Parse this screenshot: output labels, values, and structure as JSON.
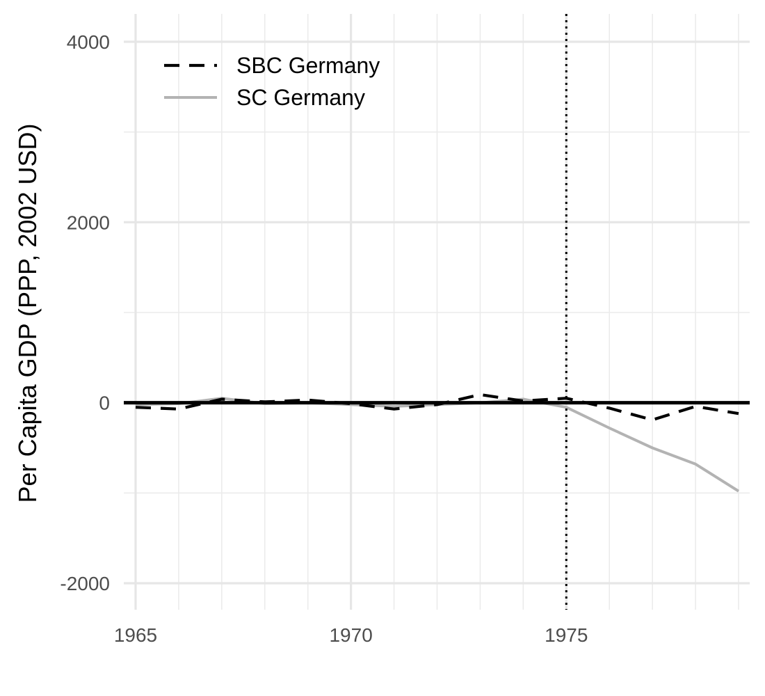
{
  "chart_data": {
    "type": "line",
    "title": "",
    "xlabel": "",
    "ylabel": "Per Capita GDP (PPP, 2002 USD)",
    "xlim": [
      1965,
      1979
    ],
    "ylim": [
      -2200,
      4200
    ],
    "x_ticks": [
      1965,
      1970,
      1975
    ],
    "x_tick_labels": [
      "1965",
      "1970",
      "1975"
    ],
    "x_minor_ticks": [
      1966,
      1967,
      1968,
      1969,
      1971,
      1972,
      1973,
      1974,
      1976,
      1977,
      1978,
      1979
    ],
    "y_ticks": [
      -2000,
      0,
      2000,
      4000
    ],
    "y_tick_labels": [
      "-2000",
      "0",
      "2000",
      "4000"
    ],
    "y_minor_ticks": [
      -1000,
      1000,
      3000
    ],
    "grid": true,
    "reference_hline": 0,
    "reference_vline": 1975,
    "legend": {
      "position": "top-left",
      "entries": [
        {
          "label": "SBC Germany",
          "style": "dashed",
          "color": "#000000"
        },
        {
          "label": "SC Germany",
          "style": "solid",
          "color": "#b3b3b3"
        }
      ]
    },
    "x": [
      1965,
      1966,
      1967,
      1968,
      1969,
      1970,
      1971,
      1972,
      1973,
      1974,
      1975,
      1976,
      1977,
      1978,
      1979
    ],
    "series": [
      {
        "name": "SBC Germany",
        "style": "dashed",
        "color": "#000000",
        "values": [
          -50,
          -70,
          40,
          10,
          30,
          -10,
          -70,
          -20,
          90,
          20,
          50,
          -60,
          -190,
          -40,
          -120
        ]
      },
      {
        "name": "SC Germany",
        "style": "solid",
        "color": "#b3b3b3",
        "values": [
          -20,
          -10,
          50,
          -10,
          0,
          -20,
          -40,
          -20,
          0,
          40,
          -50,
          -280,
          -500,
          -680,
          -980
        ]
      }
    ]
  }
}
